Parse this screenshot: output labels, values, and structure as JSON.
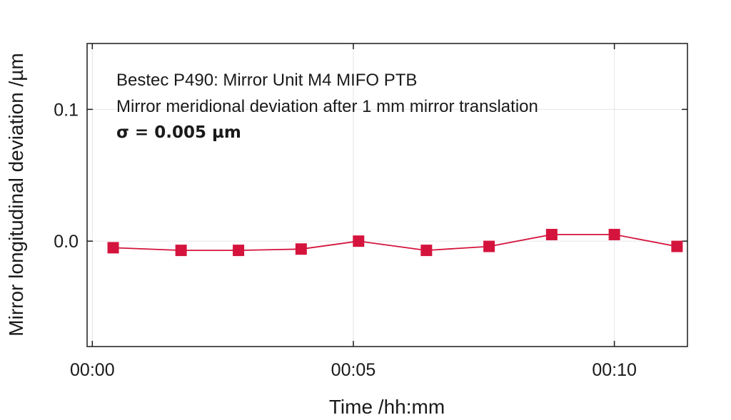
{
  "chart_data": {
    "type": "line",
    "title": "",
    "xlabel": "Time /hh:mm",
    "ylabel": "Mirror longitudinal deviation /µm",
    "x_ticks": [
      {
        "label": "00:00",
        "value": 0
      },
      {
        "label": "00:05",
        "value": 5
      },
      {
        "label": "00:10",
        "value": 10
      }
    ],
    "y_ticks": [
      {
        "label": "0.0",
        "value": 0.0
      },
      {
        "label": "0.1",
        "value": 0.1
      }
    ],
    "xlim": [
      -0.1,
      11.4
    ],
    "ylim": [
      -0.08,
      0.15
    ],
    "grid": true,
    "annotations": [
      "Bestec P490: Mirror Unit M4 MIFO PTB",
      "Mirror meridional deviation after 1 mm  mirror translation",
      "σ = 0.005 µm"
    ],
    "series": [
      {
        "color": "#d4143c",
        "marker": "square",
        "x": [
          0.4,
          1.7,
          2.8,
          4.0,
          5.1,
          6.4,
          7.6,
          8.8,
          10.0,
          11.2
        ],
        "y": [
          -0.005,
          -0.007,
          -0.007,
          -0.006,
          0.0,
          -0.007,
          -0.004,
          0.005,
          0.005,
          -0.004
        ]
      }
    ]
  }
}
